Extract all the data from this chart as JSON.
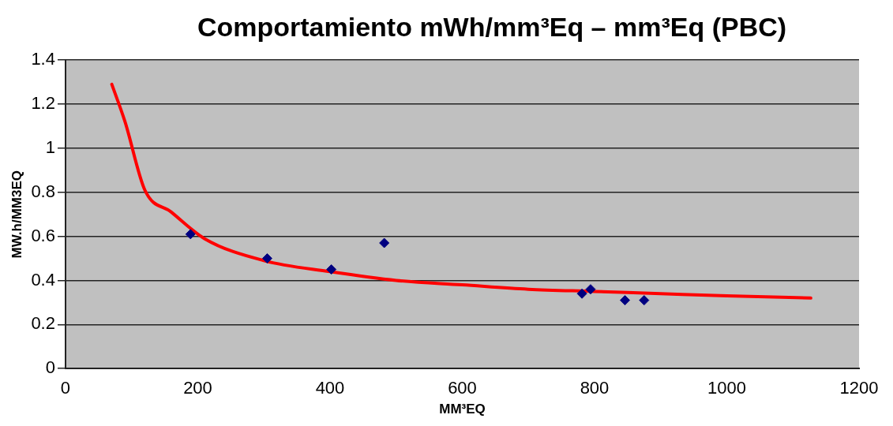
{
  "chart_data": {
    "type": "scatter",
    "title": "Comportamiento  mWh/mm³Eq – mm³Eq (PBC)",
    "xlabel": "MM³EQ",
    "ylabel": "MW.h/MM3EQ",
    "xlim": [
      0,
      1200
    ],
    "xticks": [
      0,
      200,
      400,
      600,
      800,
      1000,
      1200
    ],
    "ylim": [
      0,
      1.4
    ],
    "yticks": [
      0,
      0.2,
      0.4,
      0.6,
      0.8,
      1,
      1.2,
      1.4
    ],
    "grid": "y",
    "legend": false,
    "series": [
      {
        "color": "#000080",
        "marker": "diamond",
        "x": [
          189,
          305,
          402,
          482,
          781,
          794,
          846,
          875
        ],
        "values": [
          0.61,
          0.5,
          0.45,
          0.57,
          0.34,
          0.36,
          0.31,
          0.31
        ]
      },
      {
        "type": "line",
        "color": "#ff0000",
        "marker": "none",
        "x": [
          70,
          90,
          120,
          160,
          210,
          300,
          400,
          500,
          600,
          700,
          800,
          900,
          1000,
          1127
        ],
        "values": [
          1.29,
          1.12,
          0.81,
          0.71,
          0.59,
          0.49,
          0.44,
          0.4,
          0.38,
          0.36,
          0.35,
          0.34,
          0.33,
          0.32
        ]
      }
    ]
  }
}
